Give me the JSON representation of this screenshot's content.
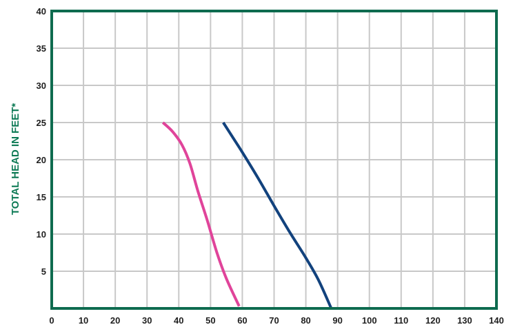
{
  "chart_data": {
    "type": "line",
    "title": "",
    "xlabel": "",
    "ylabel": "TOTAL HEAD IN FEET*",
    "xlim": [
      0,
      140
    ],
    "ylim": [
      0,
      40
    ],
    "x_ticks": [
      0,
      10,
      20,
      30,
      40,
      50,
      60,
      70,
      80,
      90,
      100,
      110,
      120,
      130,
      140
    ],
    "y_ticks": [
      5,
      10,
      15,
      20,
      25,
      30,
      35,
      40
    ],
    "grid": true,
    "colors": {
      "frame": "#0e6b4f",
      "grid": "#c8c8c8",
      "ylabel": "#0d7a55"
    },
    "series": [
      {
        "color": "#e0449a",
        "points": [
          [
            35,
            25
          ],
          [
            38,
            23.8
          ],
          [
            41,
            22
          ],
          [
            43.5,
            19.5
          ],
          [
            46,
            15.8
          ],
          [
            49,
            11.8
          ],
          [
            52,
            7.5
          ],
          [
            55,
            4
          ],
          [
            59,
            0.3
          ]
        ]
      },
      {
        "color": "#12427d",
        "points": [
          [
            54,
            25
          ],
          [
            57,
            23
          ],
          [
            60,
            21
          ],
          [
            65,
            17.5
          ],
          [
            70,
            13.8
          ],
          [
            75,
            10.2
          ],
          [
            80,
            6.8
          ],
          [
            84,
            3.8
          ],
          [
            88,
            0
          ]
        ]
      }
    ]
  }
}
